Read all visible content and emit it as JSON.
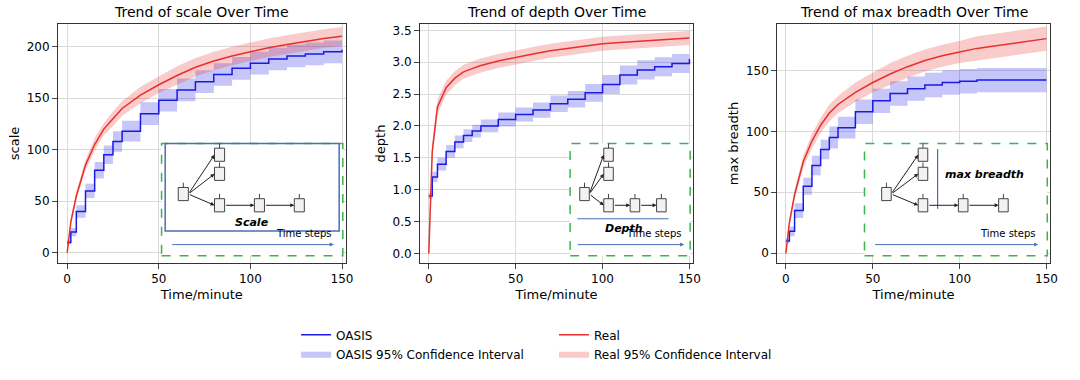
{
  "chart_data": [
    {
      "type": "line",
      "title": "Trend of scale Over Time",
      "x_label": "Time/minute",
      "y_label": "scale",
      "x": [
        0,
        2,
        5,
        10,
        15,
        20,
        25,
        30,
        40,
        50,
        60,
        70,
        80,
        90,
        100,
        110,
        120,
        130,
        140,
        150
      ],
      "xlim": [
        -5,
        152
      ],
      "xticks": [
        0,
        50,
        100,
        150
      ],
      "ylim": [
        -10,
        222
      ],
      "yticks": [
        0,
        50,
        100,
        150,
        200
      ],
      "grid": true,
      "legend": "bottom",
      "annotations": [
        "Scale",
        "Time steps"
      ],
      "series": [
        {
          "name": "OASIS",
          "color": "#1a1ae6",
          "line_style": "step",
          "values": [
            10,
            20,
            40,
            60,
            80,
            95,
            108,
            118,
            135,
            148,
            158,
            166,
            173,
            179,
            184,
            188,
            191,
            193,
            195,
            197
          ],
          "ci": {
            "name": "OASIS 95% Confidence Interval",
            "lower": [
              8,
              16,
              34,
              53,
              72,
              86,
              98,
              108,
              124,
              137,
              147,
              155,
              162,
              168,
              173,
              177,
              180,
              182,
              184,
              186
            ],
            "upper": [
              12,
              24,
              46,
              67,
              88,
              104,
              118,
              128,
              146,
              159,
              169,
              177,
              184,
              190,
              195,
              199,
              202,
              204,
              206,
              208
            ]
          }
        },
        {
          "name": "Real",
          "color": "#e8302a",
          "line_style": "solid",
          "values": [
            0,
            30,
            55,
            85,
            105,
            120,
            130,
            140,
            153,
            163,
            172,
            180,
            186,
            191,
            195,
            199,
            202,
            205,
            208,
            210
          ],
          "ci": {
            "name": "Real 95% Confidence Interval",
            "lower": [
              0,
              27,
              51,
              80,
              99,
              114,
              123,
              133,
              145,
              155,
              163,
              171,
              177,
              182,
              186,
              190,
              193,
              196,
              199,
              201
            ],
            "upper": [
              0,
              33,
              59,
              90,
              111,
              126,
              137,
              147,
              161,
              171,
              181,
              189,
              195,
              200,
              204,
              208,
              211,
              214,
              217,
              219
            ]
          }
        }
      ]
    },
    {
      "type": "line",
      "title": "Trend of depth Over Time",
      "x_label": "Time/minute",
      "y_label": "depth",
      "x": [
        0,
        2,
        5,
        10,
        15,
        20,
        25,
        30,
        40,
        50,
        60,
        70,
        80,
        90,
        100,
        110,
        120,
        130,
        140,
        150
      ],
      "xlim": [
        -5,
        152
      ],
      "xticks": [
        0,
        50,
        100,
        150
      ],
      "ylim": [
        -0.15,
        3.6
      ],
      "yticks": [
        {
          "value": 0,
          "label": "0.0"
        },
        0.5,
        {
          "value": 1,
          "label": "1.0"
        },
        1.5,
        {
          "value": 2,
          "label": "2.0"
        },
        2.5,
        {
          "value": 3,
          "label": "3.0"
        },
        3.5
      ],
      "grid": true,
      "legend": "bottom",
      "annotations": [
        "Depth",
        "Time steps"
      ],
      "series": [
        {
          "name": "OASIS",
          "color": "#1a1ae6",
          "line_style": "step",
          "values": [
            0.9,
            1.2,
            1.4,
            1.6,
            1.75,
            1.85,
            1.92,
            2.0,
            2.1,
            2.18,
            2.25,
            2.35,
            2.42,
            2.52,
            2.65,
            2.8,
            2.88,
            2.93,
            2.98,
            3.05
          ],
          "ci": {
            "name": "OASIS 95% Confidence Interval",
            "lower": [
              0.85,
              1.12,
              1.3,
              1.5,
              1.65,
              1.75,
              1.82,
              1.9,
              1.99,
              2.07,
              2.13,
              2.22,
              2.29,
              2.38,
              2.5,
              2.65,
              2.73,
              2.78,
              2.83,
              2.9
            ],
            "upper": [
              0.95,
              1.28,
              1.5,
              1.7,
              1.85,
              1.95,
              2.02,
              2.1,
              2.21,
              2.29,
              2.37,
              2.48,
              2.55,
              2.66,
              2.8,
              2.95,
              3.03,
              3.08,
              3.13,
              3.2
            ]
          }
        },
        {
          "name": "Real",
          "color": "#e8302a",
          "line_style": "solid",
          "values": [
            0,
            1.6,
            2.3,
            2.6,
            2.75,
            2.85,
            2.9,
            2.95,
            3.02,
            3.08,
            3.13,
            3.18,
            3.22,
            3.26,
            3.29,
            3.31,
            3.33,
            3.35,
            3.37,
            3.38
          ],
          "ci": {
            "name": "Real 95% Confidence Interval",
            "lower": [
              0,
              1.48,
              2.18,
              2.49,
              2.64,
              2.74,
              2.79,
              2.84,
              2.91,
              2.97,
              3.02,
              3.07,
              3.11,
              3.15,
              3.18,
              3.2,
              3.22,
              3.24,
              3.26,
              3.27
            ],
            "upper": [
              0,
              1.72,
              2.42,
              2.71,
              2.86,
              2.96,
              3.01,
              3.06,
              3.13,
              3.19,
              3.24,
              3.29,
              3.33,
              3.37,
              3.4,
              3.42,
              3.44,
              3.46,
              3.48,
              3.49
            ]
          }
        }
      ]
    },
    {
      "type": "line",
      "title": "Trend of max breadth Over Time",
      "x_label": "Time/minute",
      "y_label": "max breadth",
      "x": [
        0,
        2,
        5,
        10,
        15,
        20,
        25,
        30,
        40,
        50,
        60,
        70,
        80,
        90,
        100,
        110,
        120,
        130,
        140,
        150
      ],
      "xlim": [
        -5,
        152
      ],
      "xticks": [
        0,
        50,
        100,
        150
      ],
      "ylim": [
        -8,
        188
      ],
      "yticks": [
        0,
        50,
        100,
        150
      ],
      "grid": true,
      "legend": "bottom",
      "annotations": [
        "max breadth",
        "Time steps"
      ],
      "series": [
        {
          "name": "OASIS",
          "color": "#1a1ae6",
          "line_style": "step",
          "values": [
            10,
            18,
            35,
            55,
            72,
            85,
            95,
            103,
            116,
            125,
            131,
            135,
            138,
            140,
            141,
            142,
            142,
            142,
            142,
            142
          ],
          "ci": {
            "name": "OASIS 95% Confidence Interval",
            "lower": [
              8,
              14,
              29,
              48,
              64,
              77,
              86,
              94,
              106,
              115,
              121,
              125,
              128,
              130,
              131,
              132,
              132,
              132,
              132,
              132
            ],
            "upper": [
              12,
              22,
              41,
              62,
              80,
              93,
              104,
              112,
              126,
              135,
              141,
              145,
              148,
              150,
              151,
              152,
              152,
              152,
              152,
              152
            ]
          }
        },
        {
          "name": "Real",
          "color": "#e8302a",
          "line_style": "solid",
          "values": [
            0,
            25,
            48,
            75,
            92,
            105,
            115,
            122,
            132,
            140,
            147,
            153,
            158,
            162,
            165,
            168,
            170,
            172,
            174,
            176
          ],
          "ci": {
            "name": "Real 95% Confidence Interval",
            "lower": [
              0,
              22,
              44,
              70,
              86,
              99,
              108,
              115,
              124,
              132,
              138,
              144,
              149,
              153,
              156,
              158,
              160,
              162,
              164,
              166
            ],
            "upper": [
              0,
              28,
              52,
              80,
              98,
              111,
              122,
              129,
              140,
              148,
              156,
              162,
              167,
              171,
              174,
              178,
              180,
              182,
              184,
              186
            ]
          }
        }
      ]
    }
  ]
}
